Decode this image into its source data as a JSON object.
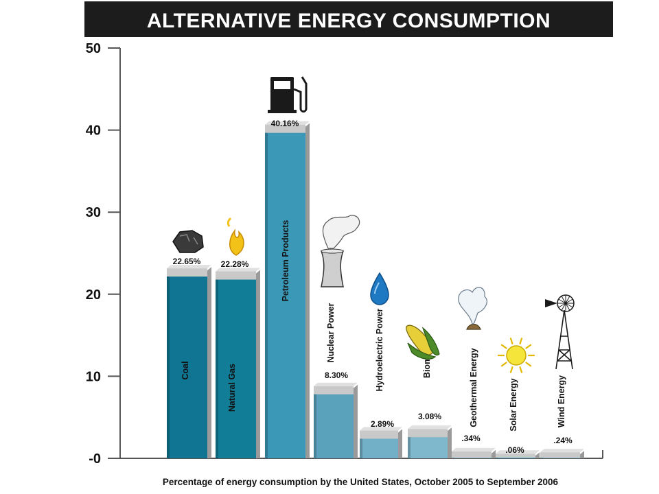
{
  "chart_data": {
    "type": "bar",
    "title": "ALTERNATIVE ENERGY CONSUMPTION",
    "caption": "Percentage of energy consumption by the United States, October 2005 to September 2006",
    "ylim": [
      0,
      50
    ],
    "yticks": [
      "-0",
      "10",
      "20",
      "30",
      "40",
      "50"
    ],
    "grid": false,
    "categories": [
      "Coal",
      "Natural Gas",
      "Petroleum Products",
      "Nuclear Power",
      "Hydroelectric Power",
      "Biomass",
      "Geothermal Energy",
      "Solar Energy",
      "Wind Energy"
    ],
    "values": [
      22.65,
      22.28,
      40.16,
      8.3,
      2.89,
      3.08,
      0.34,
      0.06,
      0.24
    ],
    "value_labels": [
      "22.65%",
      "22.28%",
      "40.16%",
      "8.30%",
      "2.89%",
      "3.08%",
      ".34%",
      ".06%",
      ".24%"
    ],
    "icons": [
      "coal-lump-icon",
      "gas-flame-icon",
      "fuel-pump-icon",
      "cooling-tower-icon",
      "water-drop-icon",
      "corn-cob-icon",
      "geyser-icon",
      "sun-icon",
      "windmill-icon"
    ],
    "colors": [
      "#0f7592",
      "#127d97",
      "#3b98b6",
      "#5aa2bc",
      "#72b0c7",
      "#7fb8cd",
      "#86bcd0",
      "#4fb3d5",
      "#86bcd0"
    ]
  }
}
